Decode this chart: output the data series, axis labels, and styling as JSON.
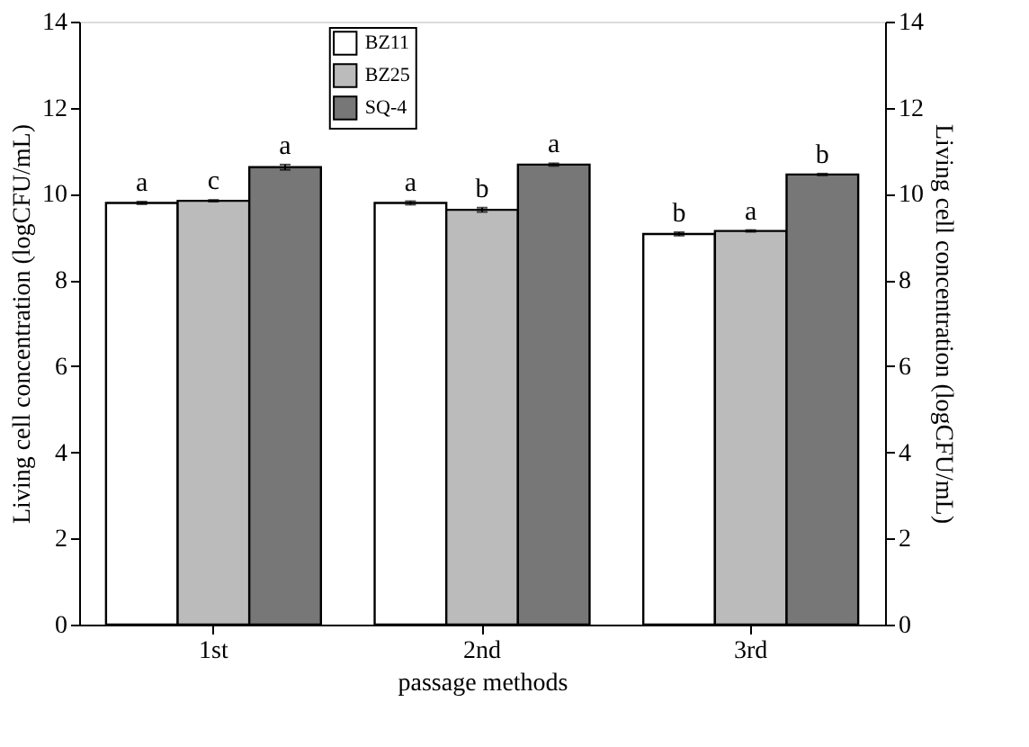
{
  "chart_data": {
    "type": "bar",
    "categories": [
      "1st",
      "2nd",
      "3rd"
    ],
    "series": [
      {
        "name": "BZ11",
        "color": "#ffffff",
        "values": [
          9.79,
          9.79,
          9.07
        ],
        "errors": [
          0.03,
          0.04,
          0.04
        ]
      },
      {
        "name": "BZ25",
        "color": "#bbbbbb",
        "values": [
          9.84,
          9.63,
          9.14
        ],
        "errors": [
          0.02,
          0.05,
          0.02
        ]
      },
      {
        "name": "SQ-4",
        "color": "#777777",
        "values": [
          10.62,
          10.68,
          10.45
        ],
        "errors": [
          0.06,
          0.03,
          0.02
        ]
      }
    ],
    "xlabel": "passage methods",
    "ylabel": "Living cell concentration (logCFU/mL)",
    "y2label": "Living cell concentration (logCFU/mL)",
    "ylim": [
      0,
      14
    ],
    "yticks": [
      0,
      2,
      4,
      6,
      8,
      10,
      12,
      14
    ],
    "y2lim": [
      0,
      14
    ],
    "y2ticks": [
      0,
      2,
      4,
      6,
      8,
      10,
      12,
      14
    ],
    "legend": "top",
    "grid": false,
    "annotations": [
      "a",
      "c",
      "a",
      "a",
      "b",
      "a",
      "b",
      "a",
      "b"
    ]
  }
}
